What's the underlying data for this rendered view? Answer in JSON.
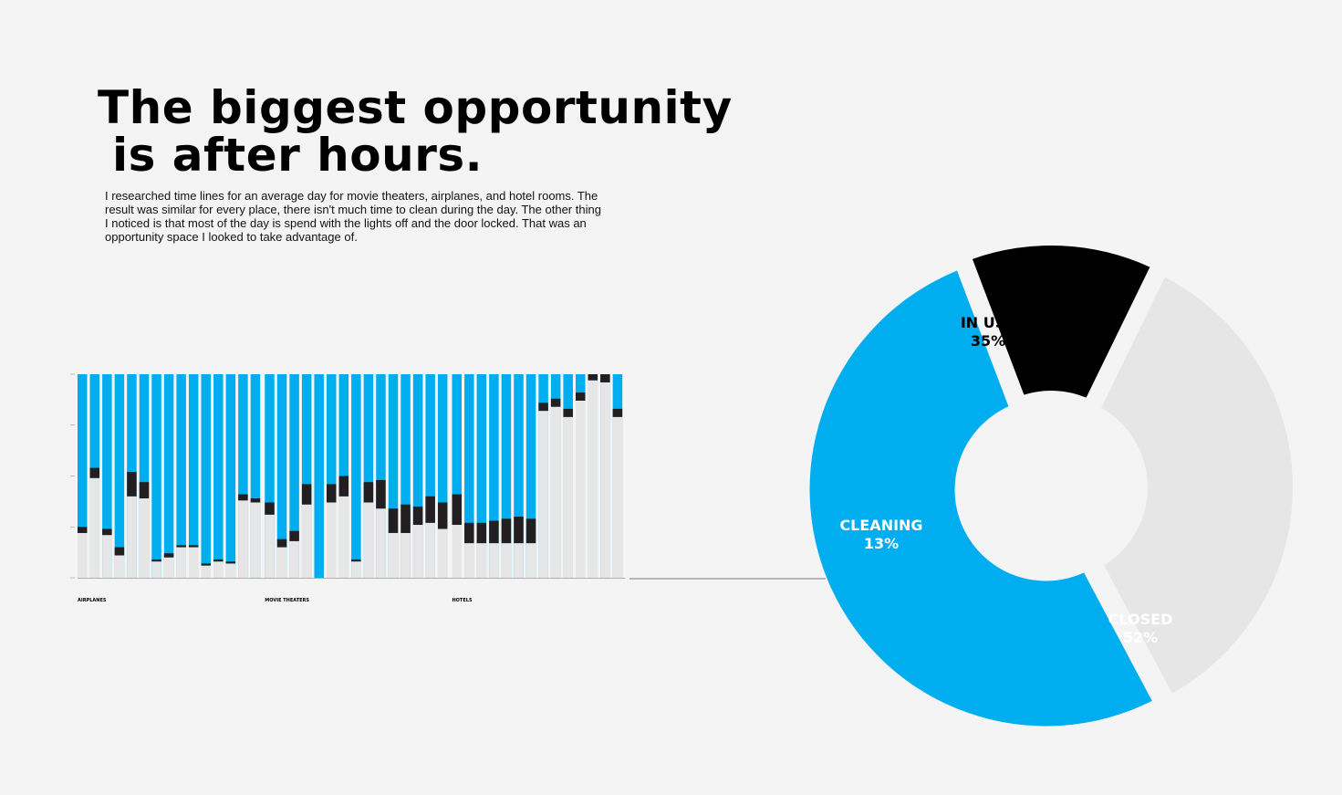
{
  "headline": {
    "line1": "The biggest opportunity",
    "line2": "is after hours."
  },
  "body": {
    "lines": [
      "I researched time lines for an average day for movie theaters, airplanes, and hotel rooms. The",
      "result was similar for every place, there isn't much time to clean during the day. The other thing",
      "I noticed is that most of the day is spend with the lights off and the door locked. That was an",
      "opportunity space I looked to take advantage of."
    ]
  },
  "colors": {
    "closed": "#00aeef",
    "in_use": "#e6e6e7",
    "cleaning": "#000000",
    "cleaning_bar": "#231f20",
    "axis": "#999999"
  },
  "chart_data": [
    {
      "type": "bar",
      "stacked": true,
      "ylim": [
        0,
        100
      ],
      "groups": [
        {
          "name": "AIRPLANES",
          "start": 0,
          "count": 15
        },
        {
          "name": "MOVIE THEATERS",
          "start": 15,
          "count": 15
        },
        {
          "name": "HOTELS",
          "start": 30,
          "count": 14
        }
      ],
      "series": [
        {
          "name": "IN USE",
          "values": [
            22,
            49,
            21,
            11,
            40,
            39,
            8,
            10,
            15,
            15,
            6,
            8,
            7,
            38,
            37,
            31,
            15,
            18,
            36,
            0,
            37,
            40,
            8,
            37,
            34,
            22,
            22,
            26,
            27,
            24,
            26,
            17,
            17,
            17,
            17,
            17,
            17,
            82,
            84,
            79,
            87,
            97,
            96,
            79
          ]
        },
        {
          "name": "CLEANING",
          "values": [
            3,
            5,
            3,
            4,
            12,
            8,
            1,
            2,
            1,
            1,
            1,
            1,
            1,
            3,
            2,
            6,
            4,
            5,
            10,
            0,
            9,
            10,
            1,
            10,
            14,
            12,
            14,
            9,
            13,
            13,
            15,
            10,
            10,
            11,
            12,
            13,
            12,
            4,
            4,
            4,
            4,
            3,
            4,
            4
          ]
        },
        {
          "name": "CLOSED",
          "values": [
            75,
            46,
            76,
            85,
            48,
            53,
            91,
            88,
            84,
            84,
            93,
            91,
            92,
            59,
            61,
            63,
            81,
            77,
            54,
            100,
            54,
            50,
            91,
            53,
            52,
            65,
            64,
            65,
            60,
            63,
            59,
            73,
            73,
            72,
            71,
            70,
            71,
            14,
            12,
            17,
            9,
            0,
            0,
            17
          ]
        }
      ]
    },
    {
      "type": "pie",
      "series": [
        {
          "name": "IN USE",
          "percent_label": "35%",
          "value": 35
        },
        {
          "name": "CLOSED",
          "percent_label": "52%",
          "value": 52
        },
        {
          "name": "CLEANING",
          "percent_label": "13%",
          "value": 13
        }
      ]
    }
  ]
}
